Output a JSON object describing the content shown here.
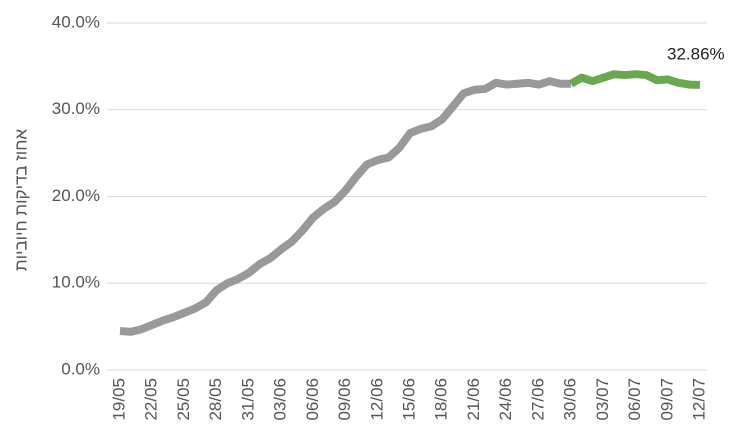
{
  "chart_data": {
    "type": "line",
    "y_label": "אחוז בדיקות חיוביות",
    "categories": [
      "19/05",
      null,
      null,
      "22/05",
      null,
      null,
      "25/05",
      null,
      null,
      "28/05",
      null,
      null,
      "31/05",
      null,
      null,
      "03/06",
      null,
      null,
      "06/06",
      null,
      null,
      "09/06",
      null,
      null,
      "12/06",
      null,
      null,
      "15/06",
      null,
      null,
      "18/06",
      null,
      null,
      "21/06",
      null,
      null,
      "24/06",
      null,
      null,
      "27/06",
      null,
      null,
      "30/06",
      null,
      null,
      "03/07",
      null,
      null,
      "06/07",
      null,
      null,
      "09/07",
      null,
      null,
      "12/07"
    ],
    "series": [
      {
        "color": "#999999",
        "values": [
          4.5,
          4.4,
          4.7,
          5.2,
          5.7,
          6.1,
          6.6,
          7.1,
          7.8,
          9.2,
          10.0,
          10.5,
          11.2,
          12.2,
          12.9,
          13.9,
          14.8,
          16.1,
          17.6,
          18.6,
          19.4,
          20.7,
          22.3,
          23.7,
          24.2,
          24.5,
          25.6,
          27.3,
          27.8,
          28.1,
          28.9,
          30.4,
          31.9,
          32.3,
          32.4,
          33.1,
          32.9,
          33.0,
          33.1,
          32.9,
          33.3,
          33.0,
          33.0,
          null,
          null,
          null,
          null,
          null,
          null,
          null,
          null,
          null,
          null,
          null,
          null
        ]
      },
      {
        "color": "#6aa84f",
        "values": [
          null,
          null,
          null,
          null,
          null,
          null,
          null,
          null,
          null,
          null,
          null,
          null,
          null,
          null,
          null,
          null,
          null,
          null,
          null,
          null,
          null,
          null,
          null,
          null,
          null,
          null,
          null,
          null,
          null,
          null,
          null,
          null,
          null,
          null,
          null,
          null,
          null,
          null,
          null,
          null,
          null,
          null,
          33.0,
          33.7,
          33.3,
          33.7,
          34.1,
          34.0,
          34.1,
          34.0,
          33.4,
          33.5,
          33.1,
          32.9,
          32.86
        ],
        "value_labels": [
          null,
          null,
          null,
          null,
          null,
          null,
          null,
          null,
          null,
          null,
          null,
          null,
          null,
          null,
          null,
          null,
          null,
          null,
          null,
          null,
          null,
          null,
          null,
          null,
          null,
          null,
          null,
          null,
          null,
          null,
          null,
          null,
          null,
          null,
          null,
          null,
          null,
          null,
          null,
          null,
          null,
          null,
          null,
          null,
          null,
          null,
          null,
          null,
          null,
          null,
          null,
          null,
          null,
          null,
          "32.86%"
        ]
      }
    ],
    "ylim": [
      0,
      40
    ],
    "yticks": [
      {
        "value": 0,
        "label": "0.0%"
      },
      {
        "value": 10,
        "label": "10.0%"
      },
      {
        "value": 20,
        "label": "20.0%"
      },
      {
        "value": 30,
        "label": "30.0%"
      },
      {
        "value": 40,
        "label": "40.0%"
      }
    ],
    "grid": true
  }
}
